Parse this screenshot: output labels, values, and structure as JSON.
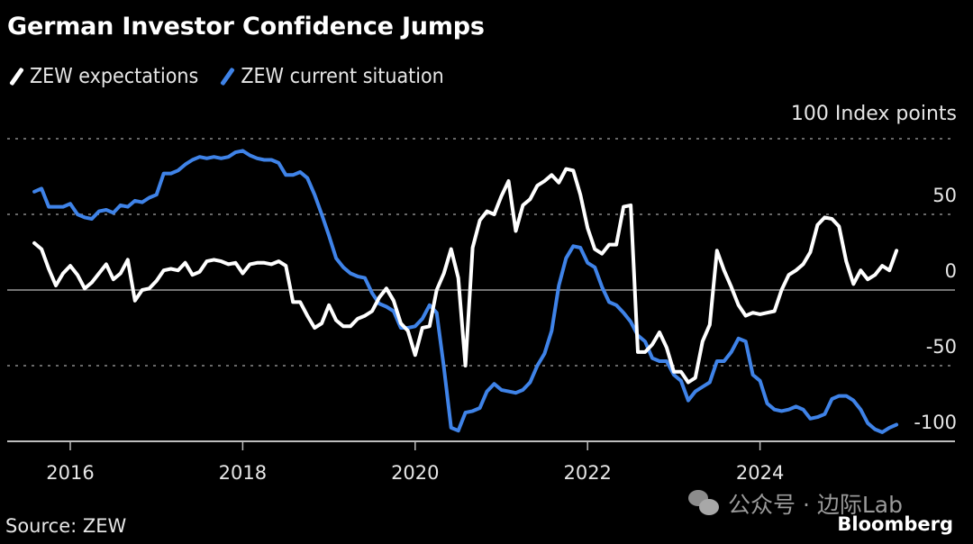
{
  "chart_data": {
    "type": "line",
    "title": "German Investor Confidence Jumps",
    "ylabel": "Index points",
    "unit_label": "100 Index points",
    "xlabel": "",
    "start": "2015-08",
    "frequency": "monthly",
    "ylim": [
      -100,
      100
    ],
    "yticks": [
      50,
      0,
      -50,
      -100
    ],
    "ytick_labels": [
      "50",
      "0",
      "-50",
      "-100"
    ],
    "xticks": [
      "2016",
      "2018",
      "2020",
      "2022",
      "2024"
    ],
    "grid": true,
    "legend_position": "top-left",
    "series": [
      {
        "name": "ZEW expectations",
        "color": "#ffffff",
        "values": [
          31,
          27,
          14,
          3,
          11,
          16,
          10,
          1,
          5,
          11,
          17,
          7,
          11,
          20,
          -7,
          0,
          1,
          6,
          13,
          14,
          13,
          18,
          10,
          12,
          19,
          20,
          19,
          17,
          18,
          11,
          17,
          18,
          18,
          17,
          19,
          16,
          -8,
          -8,
          -17,
          -25,
          -22,
          -10,
          -20,
          -24,
          -24,
          -19,
          -17,
          -14,
          -5,
          1,
          -7,
          -22,
          -27,
          -43,
          -25,
          -24,
          0,
          11,
          27,
          8,
          -50,
          28,
          46,
          52,
          50,
          62,
          72,
          39,
          56,
          60,
          69,
          72,
          76,
          71,
          80,
          79,
          63,
          41,
          27,
          24,
          30,
          30,
          55,
          56,
          -41,
          -41,
          -36,
          -28,
          -38,
          -54,
          -54,
          -61,
          -58,
          -34,
          -23,
          26,
          13,
          2,
          -10,
          -17,
          -15,
          -16,
          -15,
          -14,
          0,
          10,
          13,
          17,
          25,
          43,
          48,
          47,
          42,
          19,
          4,
          13,
          7,
          10,
          16,
          13,
          26
        ]
      },
      {
        "name": "ZEW current situation",
        "color": "#3f83e8",
        "values": [
          65,
          67,
          55,
          55,
          55,
          57,
          50,
          48,
          47,
          52,
          53,
          51,
          56,
          55,
          59,
          58,
          61,
          63,
          77,
          77,
          79,
          83,
          86,
          88,
          87,
          88,
          87,
          88,
          91,
          92,
          89,
          87,
          86,
          86,
          84,
          76,
          76,
          78,
          74,
          63,
          50,
          36,
          21,
          15,
          11,
          9,
          8,
          -2,
          -9,
          -11,
          -14,
          -25,
          -25,
          -24,
          -19,
          -10,
          -15,
          -51,
          -91,
          -93,
          -81,
          -80,
          -78,
          -67,
          -62,
          -66,
          -67,
          -68,
          -66,
          -61,
          -50,
          -42,
          -27,
          3,
          21,
          29,
          28,
          18,
          15,
          2,
          -8,
          -10,
          -15,
          -21,
          -30,
          -34,
          -45,
          -47,
          -47,
          -56,
          -60,
          -73,
          -67,
          -64,
          -61,
          -47,
          -47,
          -41,
          -32,
          -34,
          -56,
          -60,
          -75,
          -79,
          -80,
          -79,
          -77,
          -79,
          -85,
          -84,
          -82,
          -72,
          -70,
          -70,
          -73,
          -79,
          -88,
          -92,
          -94,
          -91,
          -89
        ]
      }
    ]
  },
  "source": "Source: ZEW",
  "brand": "Bloomberg",
  "watermark": "公众号 · 边际Lab"
}
